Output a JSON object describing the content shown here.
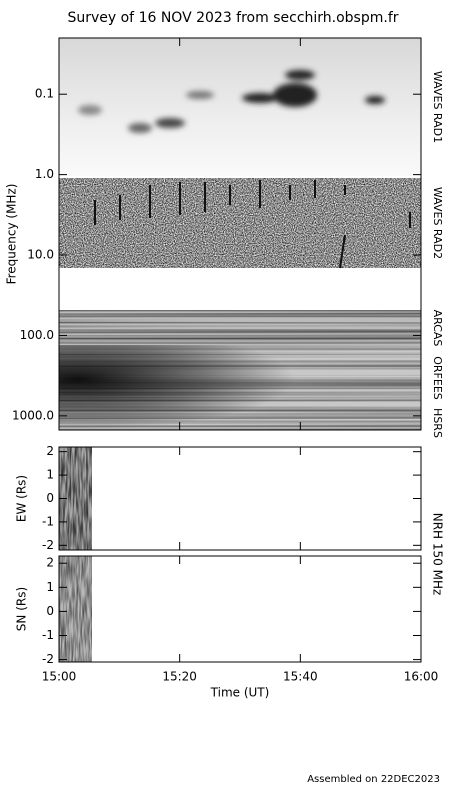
{
  "chart_data": [
    {
      "type": "spectrogram",
      "title": "Survey of 16 NOV 2023 from secchirh.obspm.fr",
      "ylabel": "Frequency (MHz)",
      "log": true,
      "inverted": true,
      "ylim": [
        0.02,
        1500
      ],
      "yticks": [
        {
          "value": 0.1,
          "label": "0.1"
        },
        {
          "value": 1,
          "label": "1.0"
        },
        {
          "value": 10,
          "label": "10.0"
        },
        {
          "value": 100,
          "label": "100.0"
        },
        {
          "value": 1000,
          "label": "1000.0"
        }
      ],
      "annotations": [
        "WAVES RAD1",
        "WAVES RAD2",
        "ARCAS",
        "ORFEES",
        "HSRS"
      ]
    },
    {
      "type": "image",
      "ylabel": "EW (Rs)",
      "ylim": [
        -2.2,
        2.2
      ],
      "yticks": [
        -2,
        -1,
        0,
        1,
        2
      ]
    },
    {
      "type": "image",
      "ylabel": "SN (Rs)",
      "ylim": [
        -2.1,
        2.3
      ],
      "yticks": [
        -2,
        -1,
        0,
        1,
        2
      ],
      "xlabel": "Time (UT)",
      "xlim": [
        0,
        60
      ],
      "xticks": [
        {
          "value": 0,
          "label": "15:00"
        },
        {
          "value": 20,
          "label": "15:20"
        },
        {
          "value": 40,
          "label": "15:40"
        },
        {
          "value": 60,
          "label": "16:00"
        }
      ],
      "annotation": "NRH 150 MHz"
    }
  ],
  "footer": "Assembled on 22DEC2023"
}
